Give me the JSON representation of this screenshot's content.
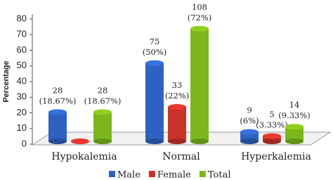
{
  "chart_data": {
    "type": "bar",
    "y_label": "Percentage",
    "categories": [
      "Hypokalemia",
      "Normal",
      "Hyperkalemia"
    ],
    "series": [
      {
        "name": "Male",
        "color": "#2f62c0",
        "values": [
          18.67,
          50,
          6
        ],
        "value_labels": [
          [
            "28",
            "(18.67%)"
          ],
          [
            "75",
            "(50%)"
          ],
          [
            "9",
            "(6%)"
          ]
        ]
      },
      {
        "name": "Female",
        "color": "#c9322b",
        "values": [
          0,
          22,
          3.33
        ],
        "value_labels": [
          null,
          [
            "33",
            "(22%)"
          ],
          [
            "5",
            "(3.33%)"
          ]
        ]
      },
      {
        "name": "Total",
        "color": "#7cb61c",
        "values": [
          18.67,
          72,
          9.33
        ],
        "value_labels": [
          [
            "28",
            "(18.67%)"
          ],
          [
            "108",
            "(72%)"
          ],
          [
            "14",
            "(9.33%)"
          ]
        ]
      }
    ],
    "ylim": [
      0,
      80
    ],
    "yticks": [
      0,
      10,
      20,
      30,
      40,
      50,
      60,
      70,
      80
    ]
  }
}
